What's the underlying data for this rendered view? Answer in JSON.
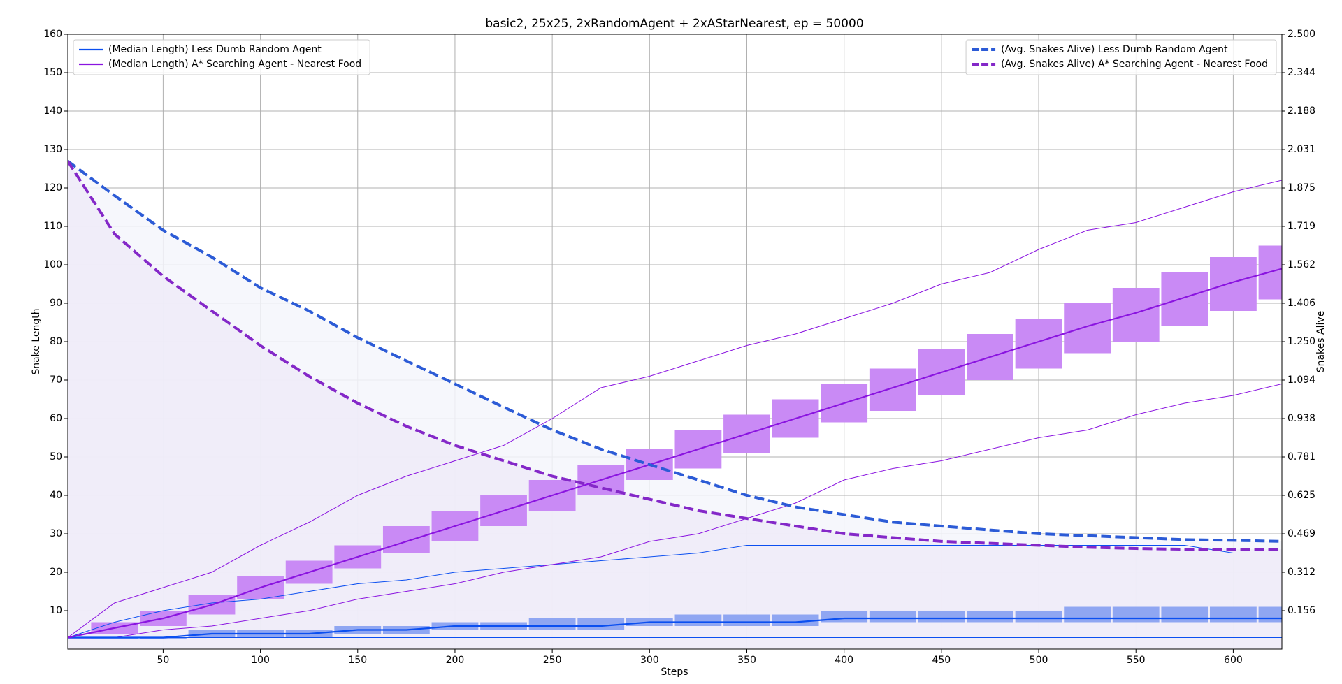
{
  "chart_data": {
    "type": "line",
    "title": "basic2, 25x25, 2xRandomAgent + 2xAStarNearest, ep = 50000",
    "xlabel": "Steps",
    "ylabel": "Snake Length",
    "y2label": "Snakes Alive",
    "x": [
      1,
      25,
      50,
      75,
      100,
      125,
      150,
      175,
      200,
      225,
      250,
      275,
      300,
      325,
      350,
      375,
      400,
      425,
      450,
      475,
      500,
      525,
      550,
      575,
      600,
      625
    ],
    "xlim": [
      1,
      625
    ],
    "ylim": [
      0,
      160
    ],
    "y2lim": [
      0,
      2.5
    ],
    "xticks": [
      50,
      100,
      150,
      200,
      250,
      300,
      350,
      400,
      450,
      500,
      550,
      600
    ],
    "yticks": [
      10,
      20,
      30,
      40,
      50,
      60,
      70,
      80,
      90,
      100,
      110,
      120,
      130,
      140,
      150,
      160
    ],
    "y2ticks": [
      {
        "value": 0.15625,
        "label": "0.156"
      },
      {
        "value": 0.3125,
        "label": "0.312"
      },
      {
        "value": 0.46875,
        "label": "0.469"
      },
      {
        "value": 0.625,
        "label": "0.625"
      },
      {
        "value": 0.78125,
        "label": "0.781"
      },
      {
        "value": 0.9375,
        "label": "0.938"
      },
      {
        "value": 1.09375,
        "label": "1.094"
      },
      {
        "value": 1.25,
        "label": "1.250"
      },
      {
        "value": 1.40625,
        "label": "1.406"
      },
      {
        "value": 1.5625,
        "label": "1.562"
      },
      {
        "value": 1.71875,
        "label": "1.719"
      },
      {
        "value": 1.875,
        "label": "1.875"
      },
      {
        "value": 2.03125,
        "label": "2.031"
      },
      {
        "value": 2.1875,
        "label": "2.188"
      },
      {
        "value": 2.34375,
        "label": "2.344"
      },
      {
        "value": 2.5,
        "label": "2.500"
      }
    ],
    "grid": true,
    "legend": "upper left",
    "legend2": "upper right",
    "series": [
      {
        "name": "(Median Length) Less Dumb Random Agent",
        "color": "#0b4ff0",
        "style": "solid",
        "axis": "y",
        "values": [
          3,
          3,
          3,
          4,
          4,
          4,
          5,
          5,
          6,
          6,
          6,
          6,
          7,
          7,
          7,
          7,
          8,
          8,
          8,
          8,
          8,
          8,
          8,
          8,
          8,
          8
        ],
        "band_color": "#8fa6f2",
        "band_lower": [
          3,
          3,
          3,
          3,
          3,
          3,
          4,
          4,
          5,
          5,
          5,
          5,
          6,
          6,
          6,
          6,
          7,
          7,
          7,
          7,
          7,
          7,
          7,
          7,
          7,
          7
        ],
        "band_upper": [
          3,
          3,
          3,
          5,
          5,
          5,
          6,
          6,
          7,
          7,
          8,
          8,
          8,
          9,
          9,
          9,
          10,
          10,
          10,
          10,
          10,
          11,
          11,
          11,
          11,
          11
        ],
        "thin_upper": [
          3,
          7,
          10,
          12,
          13,
          15,
          17,
          18,
          20,
          21,
          22,
          23,
          24,
          25,
          27,
          27,
          27,
          27,
          27,
          27,
          27,
          27,
          27,
          27,
          25,
          25
        ],
        "thin_lower": [
          3,
          3,
          3,
          3,
          3,
          3,
          3,
          3,
          3,
          3,
          3,
          3,
          3,
          3,
          3,
          3,
          3,
          3,
          3,
          3,
          3,
          3,
          3,
          3,
          3,
          3
        ]
      },
      {
        "name": "(Median Length) A* Searching Agent - Nearest Food",
        "color": "#8a14e0",
        "style": "solid",
        "axis": "y",
        "values": [
          3,
          5.5,
          8,
          11.5,
          16,
          20,
          24,
          28,
          32,
          36,
          40,
          44,
          48,
          52,
          56,
          60,
          64,
          68,
          72,
          76,
          80,
          84,
          87.5,
          91.5,
          95.5,
          99
        ],
        "band_color": "#c98af5",
        "band_lower": [
          3,
          4,
          6,
          9,
          13,
          17,
          21,
          25,
          28,
          32,
          36,
          40,
          44,
          47,
          51,
          55,
          59,
          62,
          66,
          70,
          73,
          77,
          80,
          84,
          88,
          91
        ],
        "band_upper": [
          3,
          7,
          10,
          14,
          19,
          23,
          27,
          32,
          36,
          40,
          44,
          48,
          52,
          57,
          61,
          65,
          69,
          73,
          78,
          82,
          86,
          90,
          94,
          98,
          102,
          105
        ],
        "thin_upper": [
          3,
          12,
          16,
          20,
          27,
          33,
          40,
          45,
          49,
          53,
          60,
          68,
          71,
          75,
          79,
          82,
          86,
          90,
          95,
          98,
          104,
          109,
          111,
          115,
          119,
          122
        ],
        "thin_lower": [
          3,
          3,
          5,
          6,
          8,
          10,
          13,
          15,
          17,
          20,
          22,
          24,
          28,
          30,
          34,
          38,
          44,
          47,
          49,
          52,
          55,
          57,
          61,
          64,
          66,
          69
        ]
      },
      {
        "name": "(Avg. Snakes Alive) Less Dumb Random Agent",
        "color": "#2c5bd6",
        "style": "dashed",
        "axis": "y2",
        "fill": "#f5f6fb",
        "values": [
          1.984,
          1.844,
          1.703,
          1.594,
          1.469,
          1.375,
          1.266,
          1.172,
          1.078,
          0.984,
          0.891,
          0.813,
          0.75,
          0.688,
          0.625,
          0.578,
          0.547,
          0.516,
          0.5,
          0.484,
          0.469,
          0.461,
          0.453,
          0.445,
          0.442,
          0.438
        ]
      },
      {
        "name": "(Avg. Snakes Alive) A* Searching Agent - Nearest Food",
        "color": "#8428c8",
        "style": "dashed",
        "axis": "y2",
        "fill": "#efebf8",
        "values": [
          1.984,
          1.688,
          1.516,
          1.375,
          1.234,
          1.109,
          1.0,
          0.906,
          0.828,
          0.766,
          0.703,
          0.656,
          0.609,
          0.563,
          0.531,
          0.5,
          0.469,
          0.453,
          0.438,
          0.43,
          0.422,
          0.414,
          0.409,
          0.406,
          0.406,
          0.406
        ]
      }
    ]
  }
}
